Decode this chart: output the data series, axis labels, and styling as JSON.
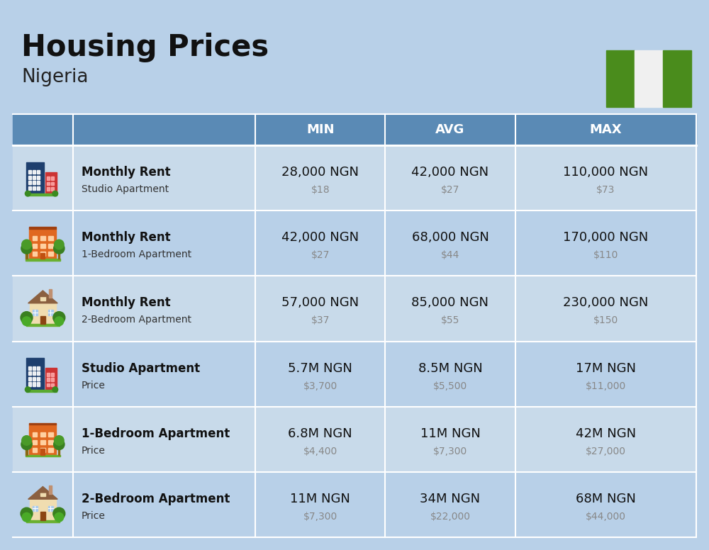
{
  "title": "Housing Prices",
  "subtitle": "Nigeria",
  "background_color": "#b8d0e8",
  "header_bg_color": "#5a8ab5",
  "row_colors": [
    "#c8daea",
    "#b8d0e8"
  ],
  "col_header_labels": [
    "MIN",
    "AVG",
    "MAX"
  ],
  "rows": [
    {
      "bold_label": "Monthly Rent",
      "sub_label": "Studio Apartment",
      "min_ngn": "28,000 NGN",
      "min_usd": "$18",
      "avg_ngn": "42,000 NGN",
      "avg_usd": "$27",
      "max_ngn": "110,000 NGN",
      "max_usd": "$73",
      "icon_type": "office_blue"
    },
    {
      "bold_label": "Monthly Rent",
      "sub_label": "1-Bedroom Apartment",
      "min_ngn": "42,000 NGN",
      "min_usd": "$27",
      "avg_ngn": "68,000 NGN",
      "avg_usd": "$44",
      "max_ngn": "170,000 NGN",
      "max_usd": "$110",
      "icon_type": "apt_orange"
    },
    {
      "bold_label": "Monthly Rent",
      "sub_label": "2-Bedroom Apartment",
      "min_ngn": "57,000 NGN",
      "min_usd": "$37",
      "avg_ngn": "85,000 NGN",
      "avg_usd": "$55",
      "max_ngn": "230,000 NGN",
      "max_usd": "$150",
      "icon_type": "house_beige"
    },
    {
      "bold_label": "Studio Apartment",
      "sub_label": "Price",
      "min_ngn": "5.7M NGN",
      "min_usd": "$3,700",
      "avg_ngn": "8.5M NGN",
      "avg_usd": "$5,500",
      "max_ngn": "17M NGN",
      "max_usd": "$11,000",
      "icon_type": "office_blue"
    },
    {
      "bold_label": "1-Bedroom Apartment",
      "sub_label": "Price",
      "min_ngn": "6.8M NGN",
      "min_usd": "$4,400",
      "avg_ngn": "11M NGN",
      "avg_usd": "$7,300",
      "max_ngn": "42M NGN",
      "max_usd": "$27,000",
      "icon_type": "apt_orange"
    },
    {
      "bold_label": "2-Bedroom Apartment",
      "sub_label": "Price",
      "min_ngn": "11M NGN",
      "min_usd": "$7,300",
      "avg_ngn": "34M NGN",
      "avg_usd": "$22,000",
      "max_ngn": "68M NGN",
      "max_usd": "$44,000",
      "icon_type": "house_beige"
    }
  ],
  "flag_green": "#4a8c1c",
  "flag_white": "#f0f0f0",
  "title_fontsize": 30,
  "subtitle_fontsize": 19,
  "header_fontsize": 13,
  "row_main_fontsize": 12,
  "row_sub_fontsize": 10,
  "ngn_fontsize": 13,
  "usd_fontsize": 10
}
